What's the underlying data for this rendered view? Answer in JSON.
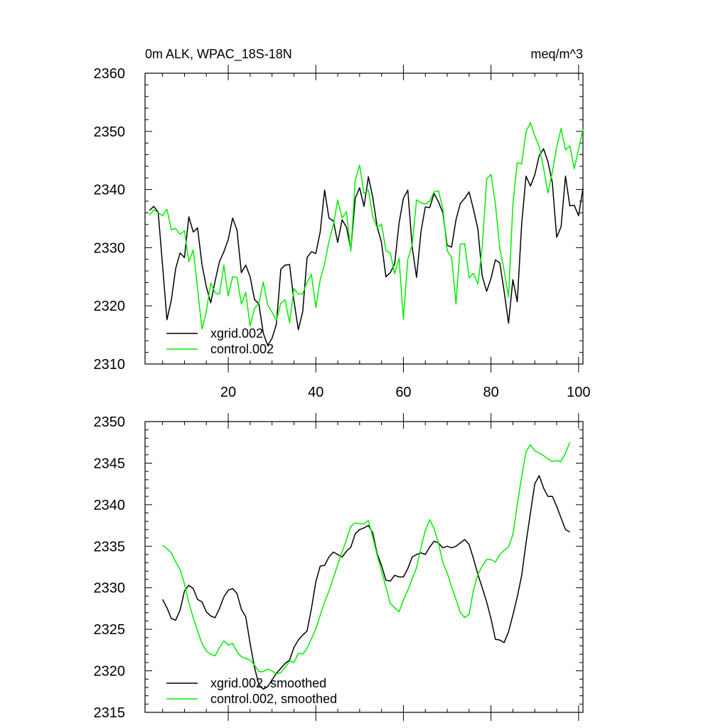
{
  "colors": {
    "xgrid": "#000000",
    "control": "#00ee00",
    "axis": "#000000",
    "background": "#ffffff"
  },
  "chart_data": [
    {
      "type": "line",
      "title": "0m ALK, WPAC_18S-18N",
      "units": "meq/m^3",
      "xlim": [
        1,
        101
      ],
      "ylim": [
        2310,
        2360
      ],
      "xticks": [
        20,
        40,
        60,
        80,
        100
      ],
      "xtick_labels": [
        "20",
        "40",
        "60",
        "80",
        "100"
      ],
      "yticks": [
        2310,
        2320,
        2330,
        2340,
        2350,
        2360
      ],
      "ytick_labels": [
        "2310",
        "2320",
        "2330",
        "2340",
        "2350",
        "2360"
      ],
      "legend_position": "bottom-left",
      "series": [
        {
          "name": "xgrid.002",
          "color_key": "xgrid",
          "x_start": 2,
          "values": [
            2336.4,
            2337.1,
            2336.1,
            2327.0,
            2317.6,
            2321.0,
            2326.4,
            2329.1,
            2328.3,
            2335.3,
            2332.7,
            2333.4,
            2327.1,
            2323.3,
            2320.5,
            2324.3,
            2327.6,
            2329.3,
            2331.4,
            2335.1,
            2333.0,
            2325.7,
            2327.0,
            2325.0,
            2321.1,
            2320.3,
            2315.3,
            2313.2,
            2314.4,
            2316.9,
            2326.3,
            2327.0,
            2327.1,
            2320.9,
            2315.9,
            2319.0,
            2328.3,
            2329.3,
            2329.0,
            2332.7,
            2339.9,
            2335.1,
            2334.6,
            2330.9,
            2334.8,
            2333.5,
            2329.7,
            2338.5,
            2340.3,
            2337.1,
            2342.2,
            2338.7,
            2333.6,
            2330.9,
            2325.0,
            2325.7,
            2327.2,
            2334.2,
            2338.5,
            2339.9,
            2330.1,
            2324.9,
            2332.7,
            2337.0,
            2336.9,
            2339.3,
            2337.9,
            2336.0,
            2330.4,
            2330.1,
            2334.8,
            2337.6,
            2338.5,
            2339.6,
            2336.6,
            2333.2,
            2325.1,
            2322.5,
            2324.7,
            2327.9,
            2327.4,
            2322.5,
            2317.0,
            2324.5,
            2320.7,
            2334.1,
            2342.3,
            2340.6,
            2342.5,
            2345.8,
            2347.0,
            2344.8,
            2341.2,
            2331.8,
            2333.6,
            2342.3,
            2337.2,
            2337.3,
            2335.5,
            2340.2
          ]
        },
        {
          "name": "control.002",
          "color_key": "control",
          "x_start": 2,
          "values": [
            2335.6,
            2336.5,
            2336.0,
            2335.5,
            2336.6,
            2333.1,
            2333.3,
            2332.3,
            2332.9,
            2327.6,
            2329.6,
            2323.0,
            2316.0,
            2319.0,
            2323.9,
            2322.3,
            2322.0,
            2327.0,
            2321.7,
            2325.0,
            2324.9,
            2320.3,
            2322.3,
            2316.5,
            2319.6,
            2320.4,
            2324.1,
            2320.2,
            2318.9,
            2317.5,
            2320.5,
            2321.0,
            2317.1,
            2323.0,
            2322.0,
            2322.1,
            2324.1,
            2325.4,
            2319.7,
            2324.5,
            2327.2,
            2331.1,
            2333.9,
            2338.2,
            2335.1,
            2336.2,
            2329.4,
            2341.6,
            2344.2,
            2339.3,
            2339.9,
            2335.4,
            2333.4,
            2334.1,
            2329.5,
            2329.1,
            2325.5,
            2328.2,
            2317.7,
            2328.0,
            2330.5,
            2338.2,
            2337.7,
            2337.5,
            2338.0,
            2339.6,
            2339.8,
            2336.8,
            2329.5,
            2328.3,
            2320.3,
            2330.6,
            2330.7,
            2324.8,
            2325.6,
            2323.7,
            2330.0,
            2341.8,
            2342.6,
            2337.5,
            2329.9,
            2326.1,
            2321.5,
            2337.4,
            2344.6,
            2344.4,
            2350.0,
            2351.5,
            2349.2,
            2347.4,
            2343.7,
            2339.4,
            2343.0,
            2347.3,
            2350.5,
            2346.8,
            2347.5,
            2343.6,
            2346.9,
            2350.4
          ]
        }
      ]
    },
    {
      "type": "line",
      "title": "",
      "units": "",
      "xlim": [
        1,
        101
      ],
      "ylim": [
        2315,
        2350
      ],
      "xticks": [
        20,
        40,
        60,
        80,
        100
      ],
      "xtick_labels": [],
      "yticks": [
        2315,
        2320,
        2325,
        2330,
        2335,
        2340,
        2345,
        2350
      ],
      "ytick_labels": [
        "2315",
        "2320",
        "2325",
        "2330",
        "2335",
        "2340",
        "2345",
        "2350"
      ],
      "legend_position": "bottom-left",
      "series": [
        {
          "name": "xgrid.002, smoothed",
          "color_key": "xgrid",
          "x_start": 5,
          "values": [
            2328.6,
            2327.6,
            2326.3,
            2326.1,
            2327.3,
            2329.6,
            2330.3,
            2329.9,
            2328.6,
            2328.3,
            2327.1,
            2326.6,
            2326.4,
            2327.5,
            2328.9,
            2329.7,
            2329.9,
            2329.3,
            2327.4,
            2326.5,
            2323.3,
            2320.4,
            2318.3,
            2317.8,
            2318.1,
            2318.9,
            2319.7,
            2320.3,
            2320.9,
            2321.3,
            2322.8,
            2323.7,
            2324.3,
            2324.8,
            2327.5,
            2330.7,
            2332.6,
            2332.7,
            2333.7,
            2334.3,
            2334.0,
            2333.7,
            2334.4,
            2334.9,
            2336.5,
            2337.0,
            2337.2,
            2337.5,
            2336.6,
            2334.1,
            2332.7,
            2330.9,
            2330.8,
            2331.5,
            2331.3,
            2331.3,
            2332.3,
            2333.7,
            2334.0,
            2334.2,
            2334.0,
            2334.9,
            2335.6,
            2335.4,
            2334.8,
            2335.0,
            2334.8,
            2335.0,
            2335.4,
            2335.8,
            2335.2,
            2333.5,
            2331.6,
            2330.0,
            2328.3,
            2326.3,
            2323.8,
            2323.7,
            2323.4,
            2324.7,
            2326.7,
            2328.9,
            2331.5,
            2335.4,
            2339.0,
            2342.5,
            2343.5,
            2342.0,
            2341.0,
            2341.0,
            2339.8,
            2338.4,
            2337.0,
            2336.7
          ]
        },
        {
          "name": "control.002, smoothed",
          "color_key": "control",
          "x_start": 5,
          "values": [
            2335.1,
            2334.7,
            2334.2,
            2333.1,
            2332.2,
            2330.5,
            2328.2,
            2326.4,
            2324.8,
            2323.3,
            2322.4,
            2322.0,
            2321.8,
            2322.8,
            2323.6,
            2323.1,
            2323.3,
            2322.3,
            2321.7,
            2321.5,
            2321.3,
            2320.7,
            2319.9,
            2319.9,
            2320.2,
            2320.0,
            2319.6,
            2319.8,
            2320.4,
            2321.2,
            2321.0,
            2322.1,
            2322.0,
            2322.7,
            2323.9,
            2325.0,
            2326.7,
            2328.3,
            2329.6,
            2331.2,
            2332.8,
            2334.3,
            2335.8,
            2337.4,
            2337.8,
            2337.7,
            2337.7,
            2338.1,
            2336.1,
            2333.9,
            2332.0,
            2330.1,
            2328.1,
            2327.6,
            2327.1,
            2328.5,
            2329.7,
            2331.1,
            2332.4,
            2334.8,
            2336.9,
            2338.2,
            2337.1,
            2335.4,
            2333.0,
            2331.8,
            2330.1,
            2328.6,
            2327.0,
            2326.4,
            2326.8,
            2329.7,
            2331.6,
            2332.6,
            2333.4,
            2333.4,
            2333.1,
            2334.0,
            2334.5,
            2334.9,
            2336.4,
            2340.0,
            2343.4,
            2346.4,
            2347.2,
            2346.5,
            2346.2,
            2345.9,
            2345.5,
            2345.2,
            2345.3,
            2345.2,
            2346.2,
            2347.5
          ]
        }
      ]
    }
  ]
}
